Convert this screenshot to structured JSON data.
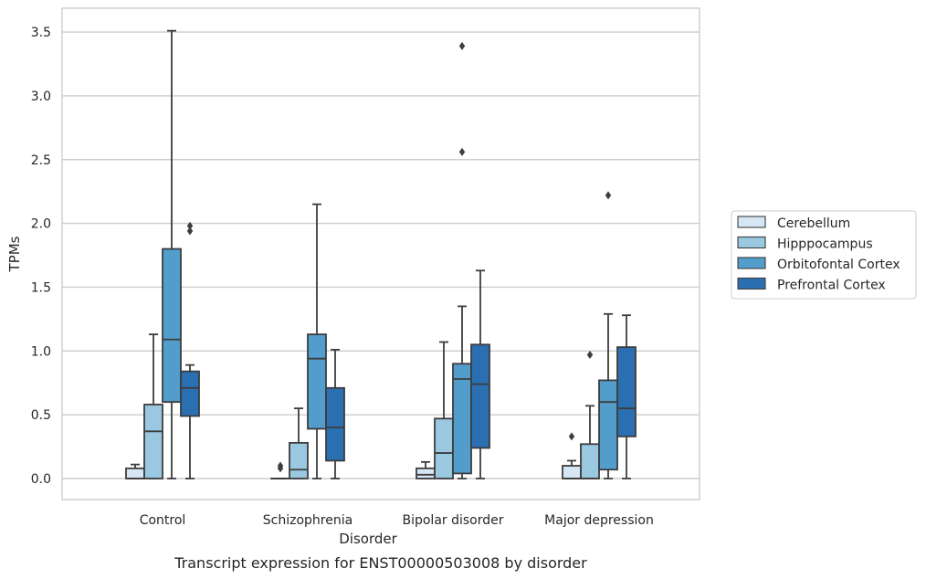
{
  "chart_data": {
    "type": "box",
    "title": "",
    "caption": "Transcript expression for ENST00000503008 by disorder",
    "xlabel": "Disorder",
    "ylabel": "TPMs",
    "ylim": [
      -0.17,
      3.69
    ],
    "yticks": [
      "0.0",
      "0.5",
      "1.0",
      "1.5",
      "2.0",
      "2.5",
      "3.0",
      "3.5"
    ],
    "grid": "horizontal",
    "legend_position": "right",
    "categories": [
      "Control",
      "Schizophrenia",
      "Bipolar disorder",
      "Major depression"
    ],
    "series": [
      {
        "name": "Cerebellum",
        "color": "#d6e6f4",
        "boxes": [
          {
            "whisker_low": 0.0,
            "q1": 0.0,
            "median": 0.0,
            "q3": 0.08,
            "whisker_high": 0.11,
            "outliers": []
          },
          {
            "whisker_low": 0.0,
            "q1": 0.0,
            "median": 0.0,
            "q3": 0.0,
            "whisker_high": 0.0,
            "outliers": [
              0.08,
              0.1
            ]
          },
          {
            "whisker_low": 0.0,
            "q1": 0.0,
            "median": 0.03,
            "q3": 0.08,
            "whisker_high": 0.13,
            "outliers": []
          },
          {
            "whisker_low": 0.0,
            "q1": 0.0,
            "median": 0.0,
            "q3": 0.1,
            "whisker_high": 0.14,
            "outliers": [
              0.33
            ]
          }
        ]
      },
      {
        "name": "Hipppocampus",
        "color": "#9ac8e0",
        "boxes": [
          {
            "whisker_low": 0.0,
            "q1": 0.0,
            "median": 0.37,
            "q3": 0.58,
            "whisker_high": 1.13,
            "outliers": []
          },
          {
            "whisker_low": 0.0,
            "q1": 0.0,
            "median": 0.07,
            "q3": 0.28,
            "whisker_high": 0.55,
            "outliers": []
          },
          {
            "whisker_low": 0.0,
            "q1": 0.0,
            "median": 0.2,
            "q3": 0.47,
            "whisker_high": 1.07,
            "outliers": []
          },
          {
            "whisker_low": 0.0,
            "q1": 0.0,
            "median": 0.0,
            "q3": 0.27,
            "whisker_high": 0.57,
            "outliers": [
              0.97
            ]
          }
        ]
      },
      {
        "name": "Orbitofontal Cortex",
        "color": "#529dcc",
        "boxes": [
          {
            "whisker_low": 0.0,
            "q1": 0.6,
            "median": 1.09,
            "q3": 1.8,
            "whisker_high": 3.51,
            "outliers": []
          },
          {
            "whisker_low": 0.0,
            "q1": 0.39,
            "median": 0.94,
            "q3": 1.13,
            "whisker_high": 2.15,
            "outliers": []
          },
          {
            "whisker_low": 0.0,
            "q1": 0.04,
            "median": 0.78,
            "q3": 0.9,
            "whisker_high": 1.35,
            "outliers": [
              2.56,
              3.39
            ]
          },
          {
            "whisker_low": 0.0,
            "q1": 0.07,
            "median": 0.6,
            "q3": 0.77,
            "whisker_high": 1.29,
            "outliers": [
              2.22
            ]
          }
        ]
      },
      {
        "name": "Prefrontal Cortex",
        "color": "#2a6fb1",
        "boxes": [
          {
            "whisker_low": 0.0,
            "q1": 0.49,
            "median": 0.71,
            "q3": 0.84,
            "whisker_high": 0.89,
            "outliers": [
              1.94,
              1.98
            ]
          },
          {
            "whisker_low": 0.0,
            "q1": 0.14,
            "median": 0.4,
            "q3": 0.71,
            "whisker_high": 1.01,
            "outliers": []
          },
          {
            "whisker_low": 0.0,
            "q1": 0.24,
            "median": 0.74,
            "q3": 1.05,
            "whisker_high": 1.63,
            "outliers": []
          },
          {
            "whisker_low": 0.0,
            "q1": 0.33,
            "median": 0.55,
            "q3": 1.03,
            "whisker_high": 1.28,
            "outliers": []
          }
        ]
      }
    ]
  }
}
